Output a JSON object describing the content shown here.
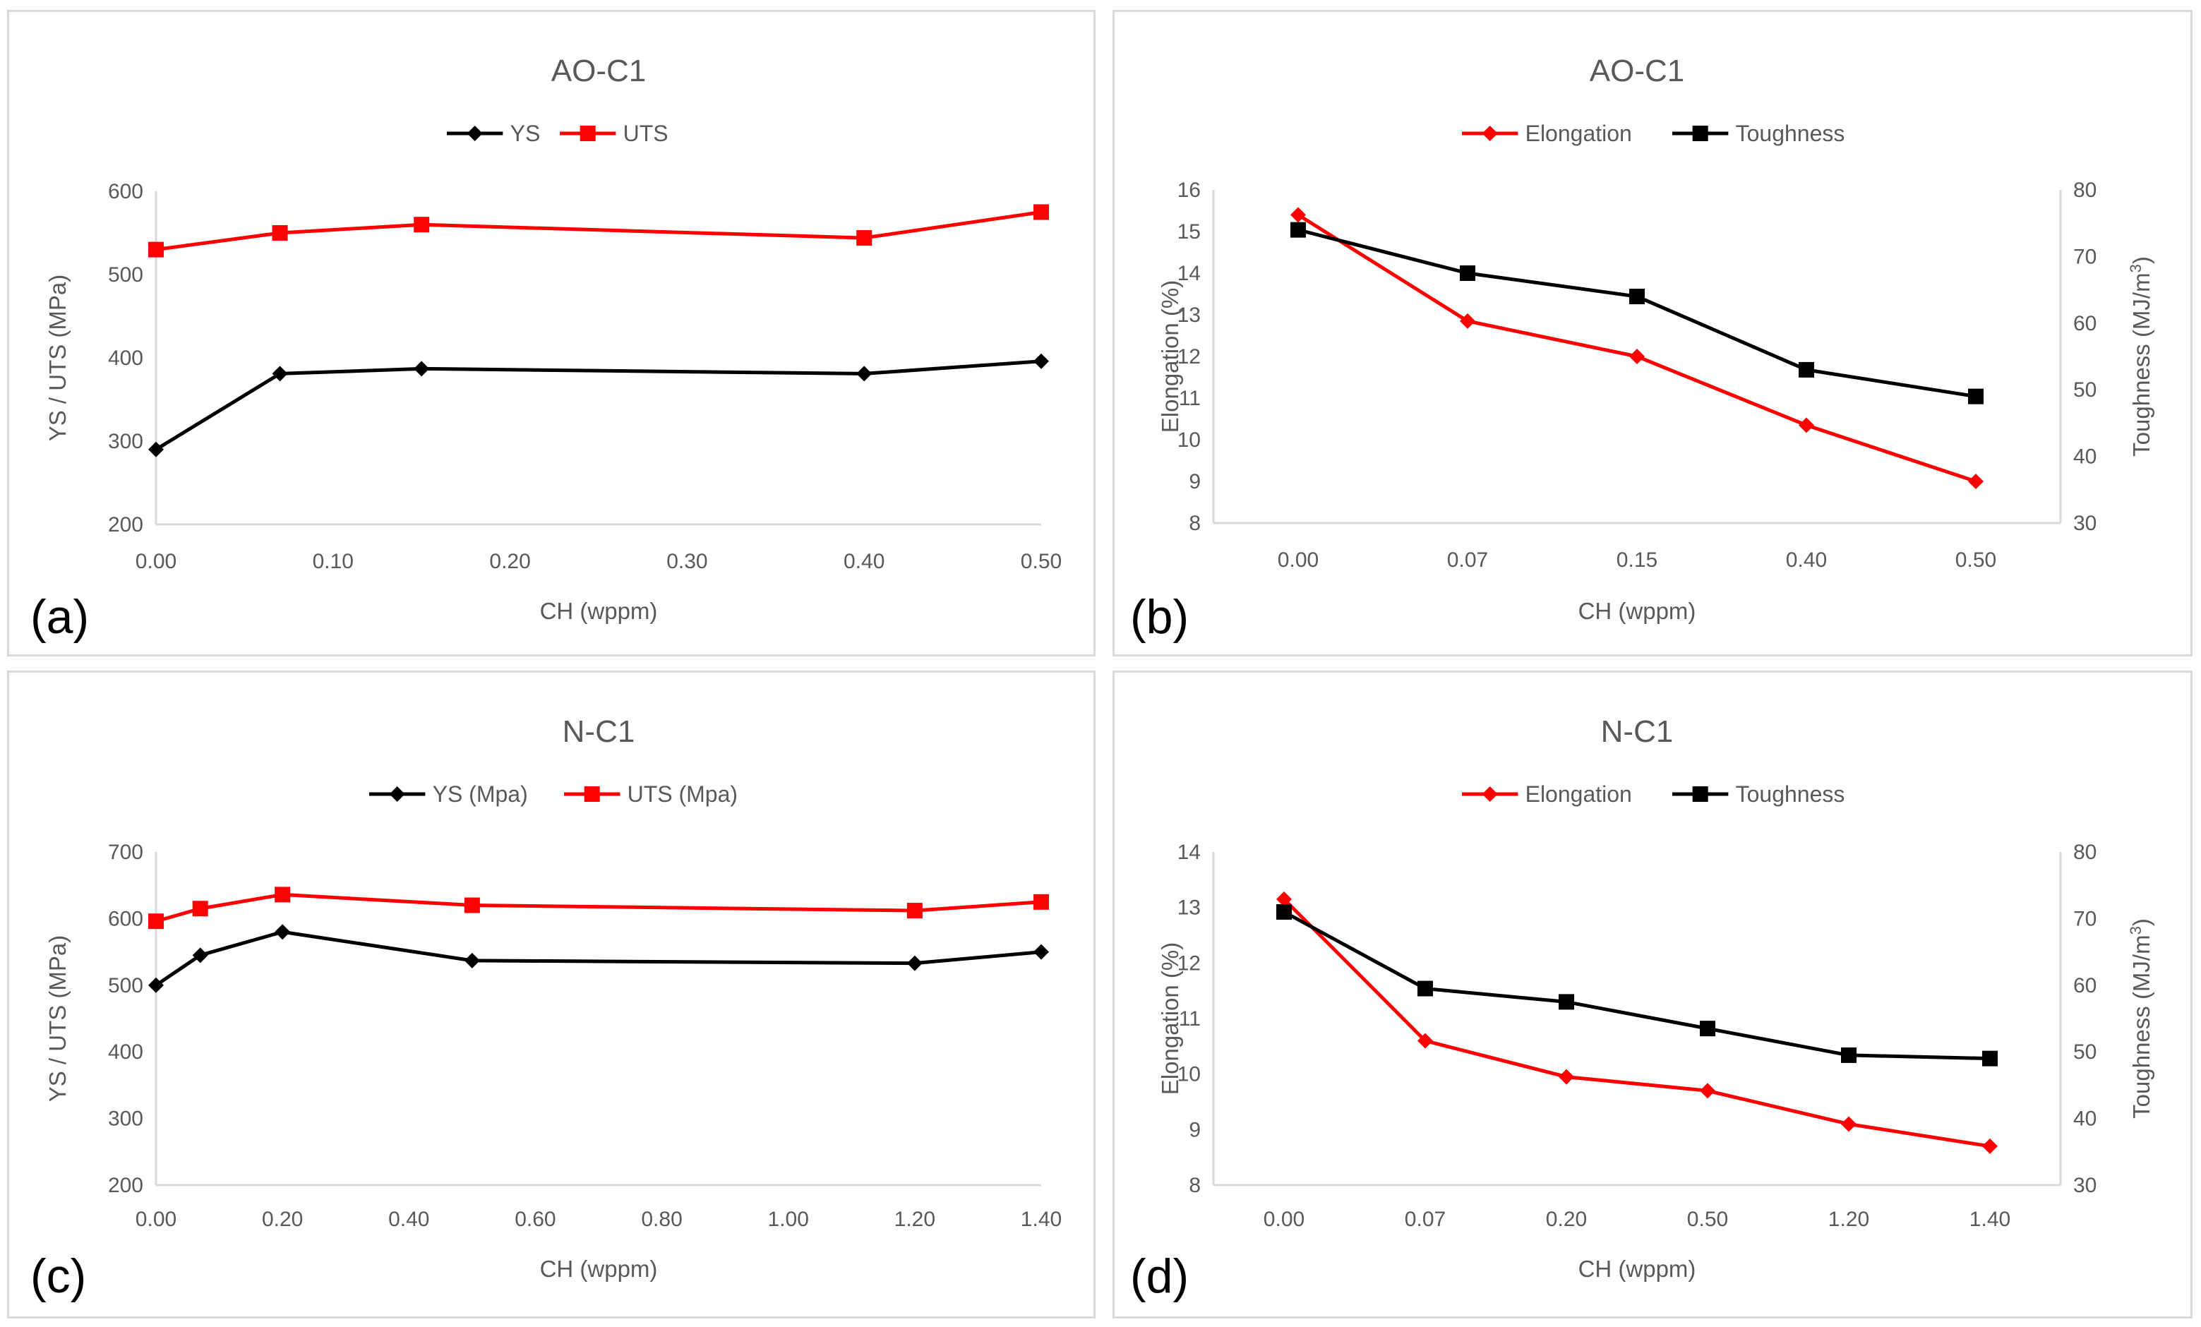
{
  "chart_data": [
    {
      "type": "line",
      "panel_label": "(a)",
      "title": "AO-C1",
      "xlabel": "CH (wppm)",
      "ylabel": "YS / UTS (MPa)",
      "x_scale": "linear",
      "xlim": [
        0,
        0.5
      ],
      "xticks": [
        "0.00",
        "0.10",
        "0.20",
        "0.30",
        "0.40",
        "0.50"
      ],
      "ylim": [
        200,
        600
      ],
      "yticks": [
        "200",
        "300",
        "400",
        "500",
        "600"
      ],
      "x": [
        0,
        0.07,
        0.15,
        0.4,
        0.5
      ],
      "series": [
        {
          "name": "YS",
          "color": "#000000",
          "marker": "diamond",
          "values": [
            290,
            381,
            387,
            381,
            396
          ]
        },
        {
          "name": "UTS",
          "color": "#ff0000",
          "marker": "square",
          "values": [
            530,
            550,
            560,
            544,
            575
          ]
        }
      ]
    },
    {
      "type": "line",
      "panel_label": "(b)",
      "title": "AO-C1",
      "xlabel": "CH (wppm)",
      "ylabel": "Elongation (%)",
      "y2label": "Toughness (MJ/m",
      "y2label_sup": "3",
      "y2label_close": ")",
      "x_scale": "category",
      "categories": [
        "0.00",
        "0.07",
        "0.15",
        "0.40",
        "0.50"
      ],
      "ylim": [
        8,
        16
      ],
      "yticks": [
        "8",
        "9",
        "10",
        "11",
        "12",
        "13",
        "14",
        "15",
        "16"
      ],
      "y2lim": [
        30,
        80
      ],
      "y2ticks": [
        "30",
        "40",
        "50",
        "60",
        "70",
        "80"
      ],
      "series": [
        {
          "name": "Elongation",
          "color": "#ff0000",
          "marker": "diamond",
          "axis": "left",
          "values": [
            15.4,
            12.85,
            12.0,
            10.35,
            9.0
          ]
        },
        {
          "name": "Toughness",
          "color": "#000000",
          "marker": "square",
          "axis": "right",
          "values": [
            74,
            67.5,
            64,
            53,
            49
          ]
        }
      ]
    },
    {
      "type": "line",
      "panel_label": "(c)",
      "title": "N-C1",
      "xlabel": "CH (wppm)",
      "ylabel": "YS / UTS (MPa)",
      "x_scale": "linear",
      "xlim": [
        0,
        1.4
      ],
      "xticks": [
        "0.00",
        "0.20",
        "0.40",
        "0.60",
        "0.80",
        "1.00",
        "1.20",
        "1.40"
      ],
      "ylim": [
        200,
        700
      ],
      "yticks": [
        "200",
        "300",
        "400",
        "500",
        "600",
        "700"
      ],
      "x": [
        0,
        0.07,
        0.2,
        0.5,
        1.2,
        1.4
      ],
      "series": [
        {
          "name": "YS (Mpa)",
          "color": "#000000",
          "marker": "diamond",
          "values": [
            500,
            545,
            580,
            537,
            533,
            550
          ]
        },
        {
          "name": "UTS (Mpa)",
          "color": "#ff0000",
          "marker": "square",
          "values": [
            596,
            615,
            636,
            620,
            612,
            625
          ]
        }
      ]
    },
    {
      "type": "line",
      "panel_label": "(d)",
      "title": "N-C1",
      "xlabel": "CH (wppm)",
      "ylabel": "Elongation (%)",
      "y2label": "Toughness (MJ/m",
      "y2label_sup": "3",
      "y2label_close": ")",
      "x_scale": "category",
      "categories": [
        "0.00",
        "0.07",
        "0.20",
        "0.50",
        "1.20",
        "1.40"
      ],
      "ylim": [
        8,
        14
      ],
      "yticks": [
        "8",
        "9",
        "10",
        "11",
        "12",
        "13",
        "14"
      ],
      "y2lim": [
        30,
        80
      ],
      "y2ticks": [
        "30",
        "40",
        "50",
        "60",
        "70",
        "80"
      ],
      "series": [
        {
          "name": "Elongation",
          "color": "#ff0000",
          "marker": "diamond",
          "axis": "left",
          "values": [
            13.15,
            10.6,
            9.95,
            9.7,
            9.1,
            8.7
          ]
        },
        {
          "name": "Toughness",
          "color": "#000000",
          "marker": "square",
          "axis": "right",
          "values": [
            71,
            59.5,
            57.5,
            53.5,
            49.5,
            49
          ]
        }
      ]
    }
  ]
}
